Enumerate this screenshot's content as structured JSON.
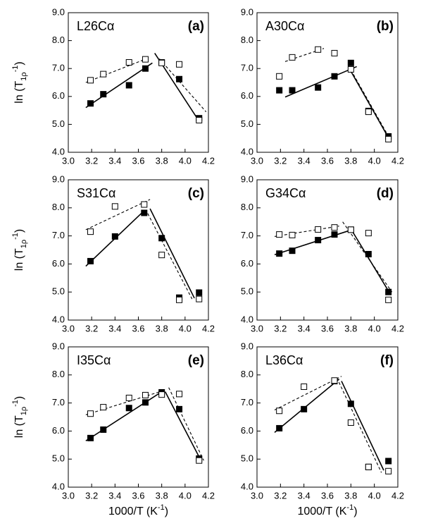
{
  "chart_data": [
    {
      "type": "scatter",
      "title": "L26Cα",
      "panel_label": "(a)",
      "ylabel": [
        "ln (T",
        "1ρ",
        "-1",
        ")"
      ],
      "xlim": [
        3.0,
        4.2
      ],
      "ylim": [
        4,
        9
      ],
      "xticks": [
        {
          "value": 3,
          "label": "3.0"
        },
        {
          "value": 3.2,
          "label": "3.2"
        },
        {
          "value": 3.4,
          "label": "3.4"
        },
        {
          "value": 3.6,
          "label": "3.6"
        },
        {
          "value": 3.8,
          "label": "3.8"
        },
        {
          "value": 4,
          "label": "4.0"
        },
        {
          "value": 4.2,
          "label": "4.2"
        }
      ],
      "yticks": [
        {
          "value": 4,
          "label": "4.0"
        },
        {
          "value": 5,
          "label": "5.0"
        },
        {
          "value": 6,
          "label": "6.0"
        },
        {
          "value": 7,
          "label": "7.0"
        },
        {
          "value": 8,
          "label": "8.0"
        },
        {
          "value": 9,
          "label": "9.0"
        }
      ],
      "series": [
        {
          "style": "solid-line",
          "x": [
            3.15,
            3.72
          ],
          "values": [
            5.6,
            7.2
          ]
        },
        {
          "style": "solid-line",
          "x": [
            3.74,
            4.13
          ],
          "values": [
            7.55,
            5.05
          ]
        },
        {
          "style": "dashed-line",
          "x": [
            3.15,
            3.7
          ],
          "values": [
            6.5,
            7.4
          ]
        },
        {
          "style": "dashed-line",
          "x": [
            3.78,
            4.18
          ],
          "values": [
            7.35,
            5.45
          ]
        },
        {
          "style": "filled-square",
          "x": [
            3.19,
            3.3,
            3.52,
            3.66,
            3.8,
            3.95,
            4.12
          ],
          "values": [
            5.75,
            6.08,
            6.4,
            7.0,
            7.22,
            6.62,
            5.22
          ]
        },
        {
          "style": "open-square",
          "x": [
            3.19,
            3.3,
            3.52,
            3.66,
            3.8,
            3.95,
            4.12
          ],
          "values": [
            6.58,
            6.8,
            7.22,
            7.33,
            7.2,
            7.15,
            5.15
          ]
        }
      ]
    },
    {
      "type": "scatter",
      "title": "A30Cα",
      "panel_label": "(b)",
      "xlim": [
        3.0,
        4.2
      ],
      "ylim": [
        4,
        9
      ],
      "xticks": [
        {
          "value": 3,
          "label": "3.0"
        },
        {
          "value": 3.2,
          "label": "3.2"
        },
        {
          "value": 3.4,
          "label": "3.4"
        },
        {
          "value": 3.6,
          "label": "3.6"
        },
        {
          "value": 3.8,
          "label": "3.8"
        },
        {
          "value": 4,
          "label": "4.0"
        },
        {
          "value": 4.2,
          "label": "4.2"
        }
      ],
      "yticks": [
        {
          "value": 4,
          "label": "4.0"
        },
        {
          "value": 5,
          "label": "5.0"
        },
        {
          "value": 6,
          "label": "6.0"
        },
        {
          "value": 7,
          "label": "7.0"
        },
        {
          "value": 8,
          "label": "8.0"
        },
        {
          "value": 9,
          "label": "9.0"
        }
      ],
      "series": [
        {
          "style": "solid-line",
          "x": [
            3.24,
            3.85
          ],
          "values": [
            5.98,
            7.07
          ]
        },
        {
          "style": "solid-line",
          "x": [
            3.78,
            4.13
          ],
          "values": [
            7.05,
            4.45
          ]
        },
        {
          "style": "dashed-line",
          "x": [
            3.24,
            3.57
          ],
          "values": [
            7.25,
            7.72
          ]
        },
        {
          "style": "dashed-line",
          "x": [
            3.78,
            4.15
          ],
          "values": [
            7.1,
            4.35
          ]
        },
        {
          "style": "filled-square",
          "x": [
            3.19,
            3.3,
            3.52,
            3.66,
            3.8,
            3.95,
            4.12
          ],
          "values": [
            6.22,
            6.22,
            6.32,
            6.72,
            7.2,
            5.48,
            4.57
          ]
        },
        {
          "style": "open-square",
          "x": [
            3.19,
            3.3,
            3.52,
            3.66,
            3.8,
            3.95,
            4.12
          ],
          "values": [
            6.72,
            7.4,
            7.68,
            7.55,
            6.97,
            5.45,
            4.47
          ]
        }
      ]
    },
    {
      "type": "scatter",
      "title": "S31Cα",
      "panel_label": "(c)",
      "ylabel": [
        "ln (T",
        "1ρ",
        "-1",
        ")"
      ],
      "xlim": [
        3.0,
        4.2
      ],
      "ylim": [
        4,
        9
      ],
      "xticks": [
        {
          "value": 3,
          "label": "3.0"
        },
        {
          "value": 3.2,
          "label": "3.2"
        },
        {
          "value": 3.4,
          "label": "3.4"
        },
        {
          "value": 3.6,
          "label": "3.6"
        },
        {
          "value": 3.8,
          "label": "3.8"
        },
        {
          "value": 4,
          "label": "4.0"
        },
        {
          "value": 4.2,
          "label": "4.2"
        }
      ],
      "yticks": [
        {
          "value": 4,
          "label": "4.0"
        },
        {
          "value": 5,
          "label": "5.0"
        },
        {
          "value": 6,
          "label": "6.0"
        },
        {
          "value": 7,
          "label": "7.0"
        },
        {
          "value": 8,
          "label": "8.0"
        },
        {
          "value": 9,
          "label": "9.0"
        }
      ],
      "series": [
        {
          "style": "solid-line",
          "x": [
            3.15,
            3.65
          ],
          "values": [
            5.92,
            7.9
          ]
        },
        {
          "style": "solid-line",
          "x": [
            3.7,
            4.08
          ],
          "values": [
            7.97,
            4.78
          ]
        },
        {
          "style": "dashed-line",
          "x": [
            3.15,
            3.7
          ],
          "values": [
            7.22,
            8.3
          ]
        },
        {
          "style": "dashed-line",
          "x": [
            3.68,
            4.06
          ],
          "values": [
            7.8,
            4.75
          ]
        },
        {
          "style": "filled-square",
          "x": [
            3.19,
            3.4,
            3.65,
            3.8,
            3.95,
            4.12
          ],
          "values": [
            6.1,
            6.98,
            7.82,
            6.92,
            4.8,
            4.98
          ]
        },
        {
          "style": "open-square",
          "x": [
            3.19,
            3.4,
            3.65,
            3.8,
            3.95,
            4.12
          ],
          "values": [
            7.15,
            8.05,
            8.12,
            6.32,
            4.72,
            4.75
          ]
        }
      ]
    },
    {
      "type": "scatter",
      "title": "G34Cα",
      "panel_label": "(d)",
      "xlim": [
        3.0,
        4.2
      ],
      "ylim": [
        4,
        9
      ],
      "xticks": [
        {
          "value": 3,
          "label": "3.0"
        },
        {
          "value": 3.2,
          "label": "3.2"
        },
        {
          "value": 3.4,
          "label": "3.4"
        },
        {
          "value": 3.6,
          "label": "3.6"
        },
        {
          "value": 3.8,
          "label": "3.8"
        },
        {
          "value": 4,
          "label": "4.0"
        },
        {
          "value": 4.2,
          "label": "4.2"
        }
      ],
      "yticks": [
        {
          "value": 4,
          "label": "4.0"
        },
        {
          "value": 5,
          "label": "5.0"
        },
        {
          "value": 6,
          "label": "6.0"
        },
        {
          "value": 7,
          "label": "7.0"
        },
        {
          "value": 8,
          "label": "8.0"
        },
        {
          "value": 9,
          "label": "9.0"
        }
      ],
      "series": [
        {
          "style": "solid-line",
          "x": [
            3.15,
            3.78
          ],
          "values": [
            6.33,
            7.18
          ]
        },
        {
          "style": "solid-line",
          "x": [
            3.8,
            4.14
          ],
          "values": [
            7.25,
            4.9
          ]
        },
        {
          "style": "dashed-line",
          "x": [
            3.15,
            3.7
          ],
          "values": [
            6.98,
            7.35
          ]
        },
        {
          "style": "dashed-line",
          "x": [
            3.73,
            4.15
          ],
          "values": [
            7.5,
            5.0
          ]
        },
        {
          "style": "filled-square",
          "x": [
            3.19,
            3.3,
            3.52,
            3.66,
            3.8,
            3.95,
            4.12
          ],
          "values": [
            6.37,
            6.47,
            6.85,
            7.05,
            7.22,
            6.35,
            5.0
          ]
        },
        {
          "style": "open-square",
          "x": [
            3.19,
            3.3,
            3.52,
            3.66,
            3.8,
            3.95,
            4.12
          ],
          "values": [
            7.05,
            7.03,
            7.23,
            7.3,
            7.22,
            7.1,
            4.72
          ]
        }
      ]
    },
    {
      "type": "scatter",
      "title": "I35Cα",
      "panel_label": "(e)",
      "ylabel": [
        "ln (T",
        "1ρ",
        "-1",
        ")"
      ],
      "xlabel": [
        "1000/T (K",
        "-1",
        ")"
      ],
      "xlim": [
        3.0,
        4.2
      ],
      "ylim": [
        4,
        9
      ],
      "xticks": [
        {
          "value": 3,
          "label": "3.0"
        },
        {
          "value": 3.2,
          "label": "3.2"
        },
        {
          "value": 3.4,
          "label": "3.4"
        },
        {
          "value": 3.6,
          "label": "3.6"
        },
        {
          "value": 3.8,
          "label": "3.8"
        },
        {
          "value": 4,
          "label": "4.0"
        },
        {
          "value": 4.2,
          "label": "4.2"
        }
      ],
      "yticks": [
        {
          "value": 4,
          "label": "4.0"
        },
        {
          "value": 5,
          "label": "5.0"
        },
        {
          "value": 6,
          "label": "6.0"
        },
        {
          "value": 7,
          "label": "7.0"
        },
        {
          "value": 8,
          "label": "8.0"
        },
        {
          "value": 9,
          "label": "9.0"
        }
      ],
      "series": [
        {
          "style": "solid-line",
          "x": [
            3.15,
            3.8
          ],
          "values": [
            5.65,
            7.4
          ]
        },
        {
          "style": "solid-line",
          "x": [
            3.83,
            4.14
          ],
          "values": [
            7.4,
            4.92
          ]
        },
        {
          "style": "dashed-line",
          "x": [
            3.15,
            3.8
          ],
          "values": [
            6.58,
            7.42
          ]
        },
        {
          "style": "dashed-line",
          "x": [
            3.86,
            4.16
          ],
          "values": [
            7.55,
            4.95
          ]
        },
        {
          "style": "filled-square",
          "x": [
            3.19,
            3.3,
            3.52,
            3.66,
            3.8,
            3.95,
            4.12
          ],
          "values": [
            5.75,
            6.05,
            6.82,
            7.02,
            7.38,
            6.78,
            5.02
          ]
        },
        {
          "style": "open-square",
          "x": [
            3.19,
            3.3,
            3.52,
            3.66,
            3.8,
            3.95,
            4.12
          ],
          "values": [
            6.62,
            6.85,
            7.18,
            7.28,
            7.3,
            7.32,
            4.95
          ]
        }
      ]
    },
    {
      "type": "scatter",
      "title": "L36Cα",
      "panel_label": "(f)",
      "xlabel": [
        "1000/T (K",
        "-1",
        ")"
      ],
      "xlim": [
        3.0,
        4.2
      ],
      "ylim": [
        4,
        9
      ],
      "xticks": [
        {
          "value": 3,
          "label": "3.0"
        },
        {
          "value": 3.2,
          "label": "3.2"
        },
        {
          "value": 3.4,
          "label": "3.4"
        },
        {
          "value": 3.6,
          "label": "3.6"
        },
        {
          "value": 3.8,
          "label": "3.8"
        },
        {
          "value": 4,
          "label": "4.0"
        },
        {
          "value": 4.2,
          "label": "4.2"
        }
      ],
      "yticks": [
        {
          "value": 4,
          "label": "4.0"
        },
        {
          "value": 5,
          "label": "5.0"
        },
        {
          "value": 6,
          "label": "6.0"
        },
        {
          "value": 7,
          "label": "7.0"
        },
        {
          "value": 8,
          "label": "8.0"
        },
        {
          "value": 9,
          "label": "9.0"
        }
      ],
      "series": [
        {
          "style": "solid-line",
          "x": [
            3.15,
            3.7
          ],
          "values": [
            5.95,
            7.85
          ]
        },
        {
          "style": "solid-line",
          "x": [
            3.72,
            4.08
          ],
          "values": [
            7.78,
            4.6
          ]
        },
        {
          "style": "dashed-line",
          "x": [
            3.15,
            3.72
          ],
          "values": [
            6.75,
            7.95
          ]
        },
        {
          "style": "dashed-line",
          "x": [
            3.68,
            4.06
          ],
          "values": [
            7.9,
            4.52
          ]
        },
        {
          "style": "filled-square",
          "x": [
            3.19,
            3.4,
            3.66,
            3.8,
            3.95,
            4.12
          ],
          "values": [
            6.1,
            6.78,
            7.78,
            6.97,
            4.72,
            4.93
          ]
        },
        {
          "style": "open-square",
          "x": [
            3.19,
            3.4,
            3.66,
            3.8,
            3.95,
            4.12
          ],
          "values": [
            6.72,
            7.58,
            7.8,
            6.3,
            4.72,
            4.57
          ]
        }
      ]
    }
  ]
}
